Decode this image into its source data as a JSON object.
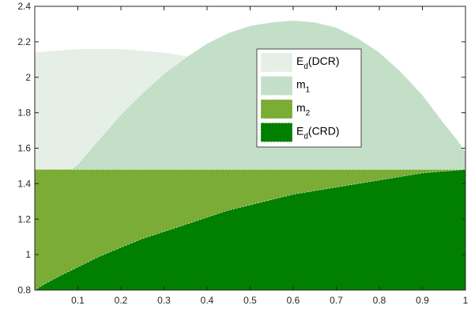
{
  "chart_data": {
    "type": "area",
    "title": "",
    "xlabel": "",
    "ylabel": "",
    "xlim": [
      0,
      1
    ],
    "ylim": [
      0.8,
      2.4
    ],
    "xticks": [
      0.1,
      0.2,
      0.3,
      0.4,
      0.5,
      0.6,
      0.7,
      0.8,
      0.9,
      1
    ],
    "xtick_labels": [
      "0.1",
      "0.2",
      "0.3",
      "0.4",
      "0.5",
      "0.6",
      "0.7",
      "0.8",
      "0.9",
      "1"
    ],
    "yticks": [
      0.8,
      1,
      1.2,
      1.4,
      1.6,
      1.8,
      2,
      2.2,
      2.4
    ],
    "ytick_labels": [
      "0.8",
      "1",
      "1.2",
      "1.4",
      "1.6",
      "1.8",
      "2",
      "2.2",
      "2.4"
    ],
    "legend_position": "top-right-center",
    "series": [
      {
        "key": "ed_dcr",
        "label_main": "E",
        "label_sub": "d",
        "label_suffix": "(DCR)",
        "color": "#e5efe6",
        "baseline": 0.8,
        "x": [
          0,
          0.05,
          0.1,
          0.15,
          0.2,
          0.25,
          0.3,
          0.35,
          0.4,
          0.45,
          0.5,
          0.55,
          0.6,
          0.65,
          0.7,
          0.75,
          0.8,
          0.85,
          0.9,
          0.95,
          1
        ],
        "values": [
          2.14,
          2.15,
          2.16,
          2.16,
          2.16,
          2.15,
          2.14,
          2.12,
          2.09,
          2.05,
          2.01,
          1.96,
          1.91,
          1.86,
          1.81,
          1.76,
          1.71,
          1.66,
          1.62,
          1.58,
          1.55
        ]
      },
      {
        "key": "m1",
        "label_main": "m",
        "label_sub": "1",
        "label_suffix": "",
        "color": "#c4dfc8",
        "baseline": 1.48,
        "x": [
          0.085,
          0.1,
          0.15,
          0.2,
          0.25,
          0.3,
          0.35,
          0.4,
          0.45,
          0.5,
          0.55,
          0.6,
          0.65,
          0.7,
          0.75,
          0.8,
          0.85,
          0.9,
          0.95,
          0.98,
          1
        ],
        "values": [
          1.48,
          1.51,
          1.65,
          1.79,
          1.91,
          2.02,
          2.11,
          2.19,
          2.25,
          2.29,
          2.31,
          2.32,
          2.31,
          2.28,
          2.22,
          2.14,
          2.03,
          1.9,
          1.74,
          1.65,
          1.58
        ]
      },
      {
        "key": "m2",
        "label_main": "m",
        "label_sub": "2",
        "label_suffix": "",
        "color": "#7aac36",
        "baseline": 0.8,
        "x": [
          0,
          1
        ],
        "values": [
          1.48,
          1.48
        ]
      },
      {
        "key": "ed_crd",
        "label_main": "E",
        "label_sub": "d",
        "label_suffix": "(CRD)",
        "color": "#007f00",
        "baseline": 0.8,
        "x": [
          0,
          0.02,
          0.05,
          0.1,
          0.15,
          0.2,
          0.25,
          0.3,
          0.35,
          0.4,
          0.45,
          0.5,
          0.55,
          0.6,
          0.65,
          0.7,
          0.75,
          0.8,
          0.85,
          0.9,
          0.95,
          1
        ],
        "values": [
          0.8,
          0.83,
          0.87,
          0.93,
          0.99,
          1.04,
          1.09,
          1.13,
          1.17,
          1.21,
          1.25,
          1.28,
          1.31,
          1.34,
          1.36,
          1.38,
          1.4,
          1.42,
          1.44,
          1.46,
          1.47,
          1.48
        ]
      }
    ]
  }
}
